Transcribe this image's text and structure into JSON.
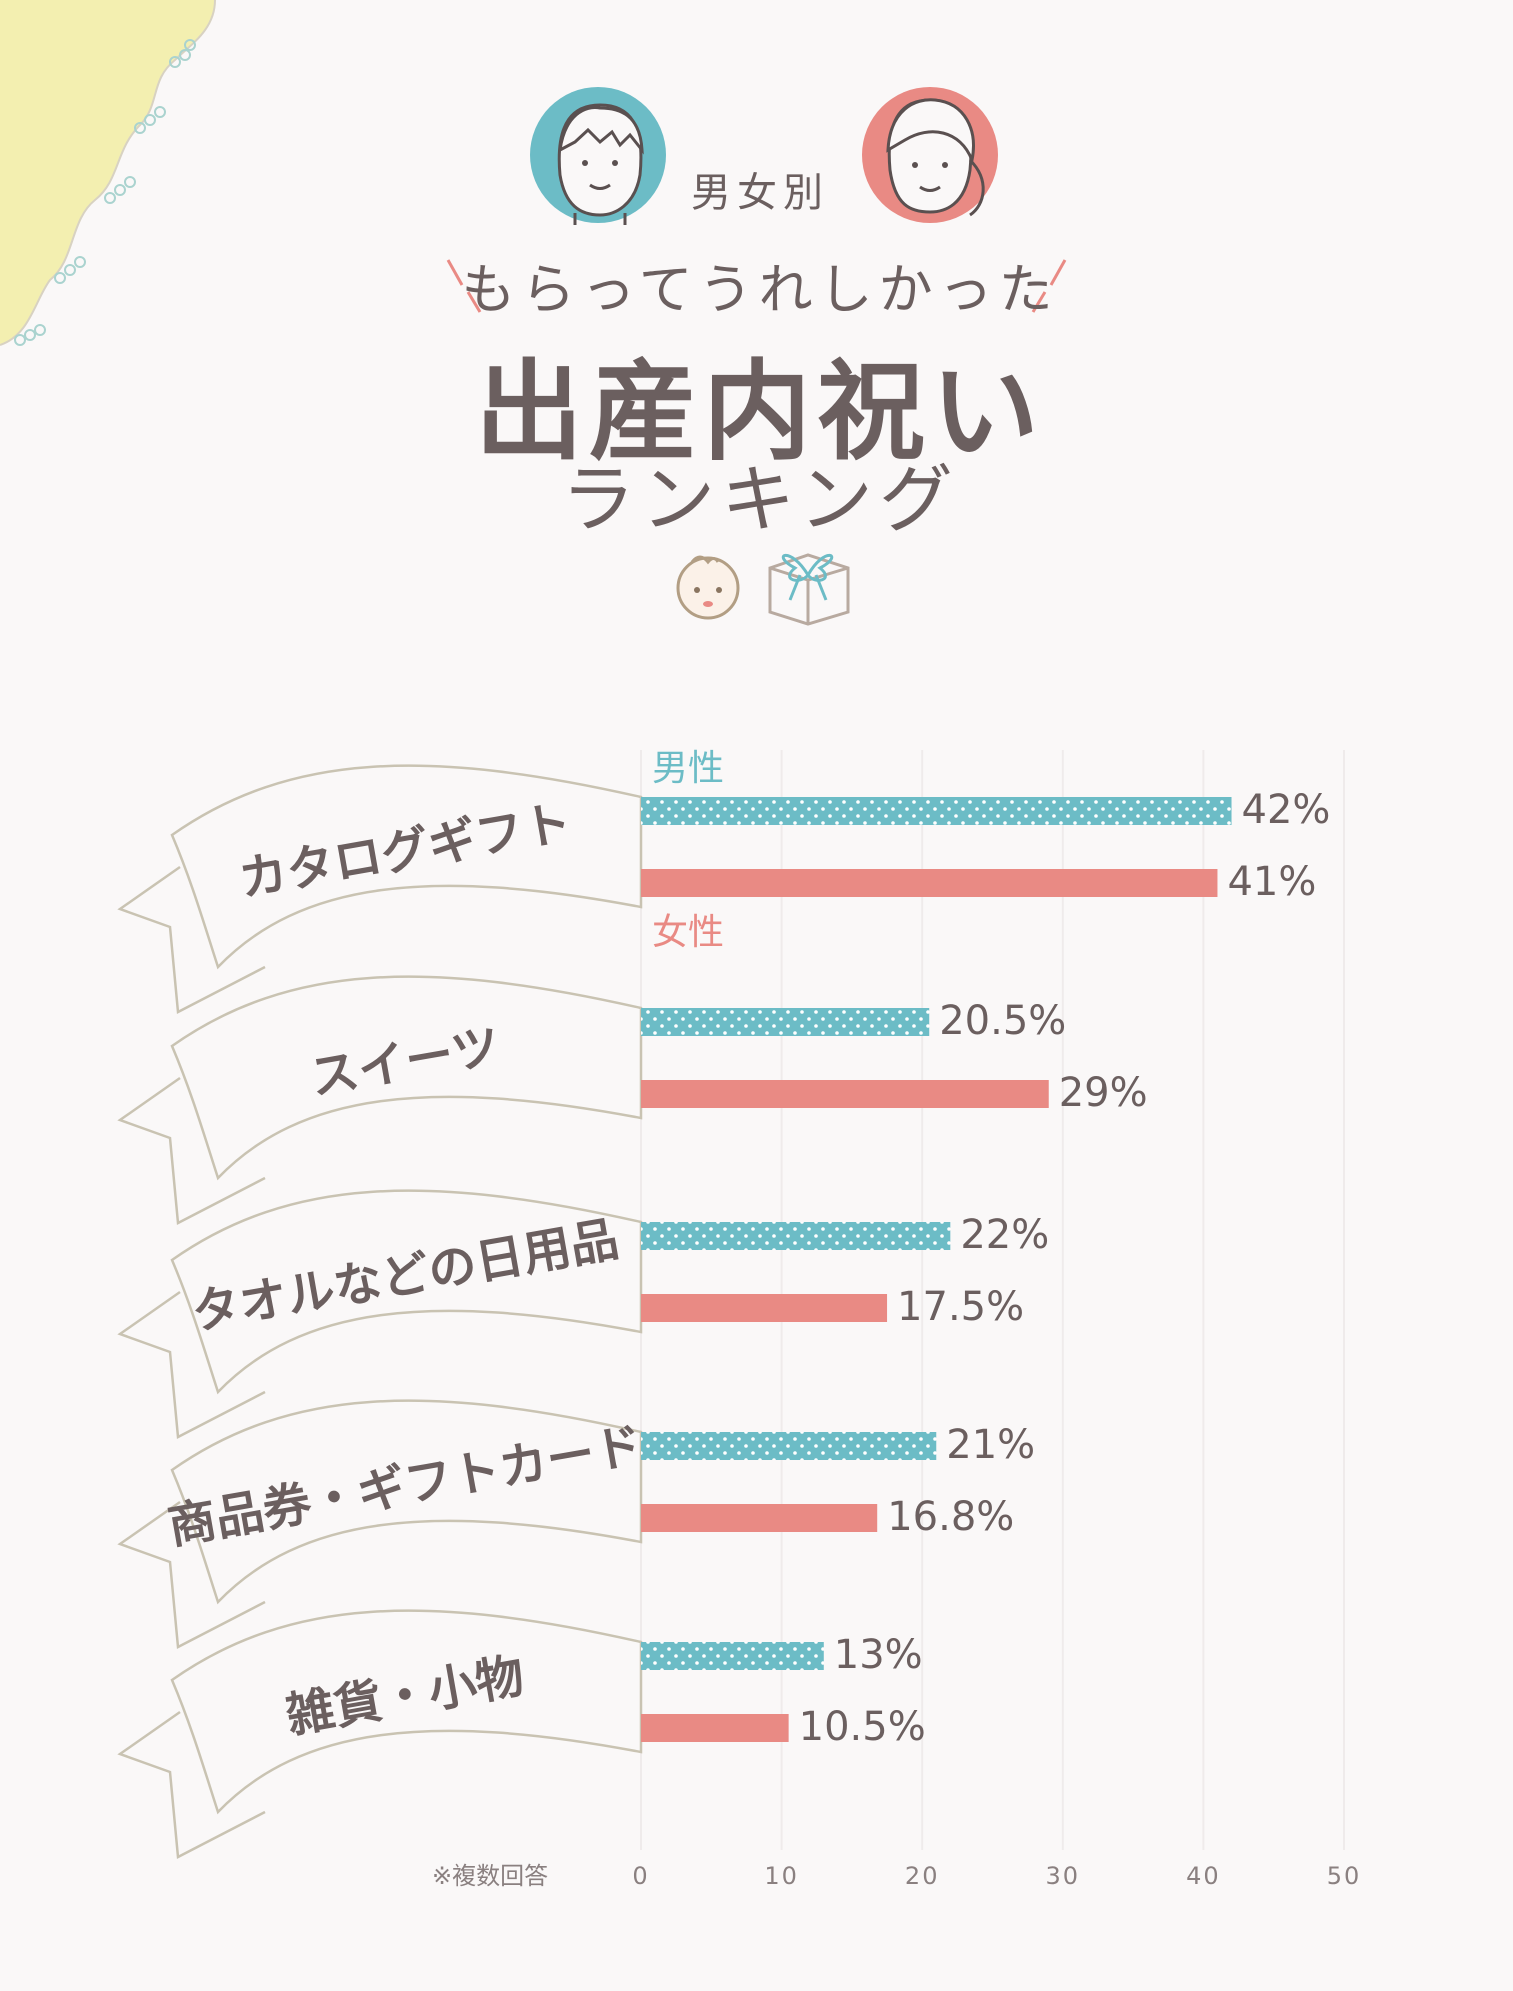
{
  "header": {
    "gender_label": "男女別",
    "subtitle": "もらってうれしかった",
    "title": "出産内祝い",
    "title_sub": "ランキング"
  },
  "colors": {
    "male": "#6cbcc6",
    "female": "#e98a84",
    "text": "#6b5f5f",
    "ribbon_stroke": "#c9c3b2",
    "corner": "#f3efb0"
  },
  "icons": [
    "boy-face-icon",
    "girl-face-icon",
    "baby-face-icon",
    "gift-box-icon"
  ],
  "chart_data": {
    "type": "bar",
    "orientation": "horizontal",
    "categories": [
      "カタログギフト",
      "スイーツ",
      "タオルなどの日用品",
      "商品券・ギフトカード",
      "雑貨・小物"
    ],
    "series": [
      {
        "name": "男性",
        "values": [
          42,
          20.5,
          22,
          21,
          13
        ],
        "labels": [
          "42%",
          "20.5%",
          "22%",
          "21%",
          "13%"
        ]
      },
      {
        "name": "女性",
        "values": [
          41,
          29,
          17.5,
          16.8,
          10.5
        ],
        "labels": [
          "41%",
          "29%",
          "17.5%",
          "16.8%",
          "10.5%"
        ]
      }
    ],
    "xlim": [
      0,
      50
    ],
    "xticks": [
      "0",
      "10",
      "20",
      "30",
      "40",
      "50"
    ],
    "grid": true,
    "note": "※複数回答"
  }
}
